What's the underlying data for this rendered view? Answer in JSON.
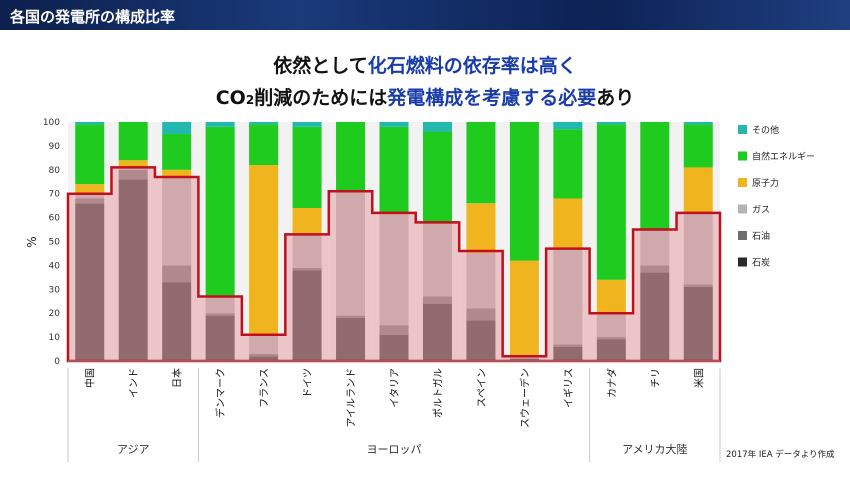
{
  "title": "各国の発電所の構成比率",
  "headline": {
    "l1a": "依然として",
    "l1b": "化石燃料の依存率は高く",
    "l2a": "CO",
    "l2sub": "2",
    "l2b": "削減のためには",
    "l2c": "発電構成を考慮する必要",
    "l2d": "あり"
  },
  "note": "2017年 IEA データより作成",
  "colors": {
    "その他": "#22b8b0",
    "自然エネルギー": "#1ecb1e",
    "原子力": "#f0b41e",
    "ガス": "#b4b4b4",
    "石油": "#6e6e6e",
    "石炭": "#2a2a2a",
    "overlay": "#e8a0a8",
    "outline": "#c0101c"
  },
  "chart_data": {
    "type": "bar",
    "stacked": true,
    "ylabel": "%",
    "ylim": [
      0,
      100
    ],
    "yticks": [
      0,
      10,
      20,
      30,
      40,
      50,
      60,
      70,
      80,
      90,
      100
    ],
    "categories": [
      "中国",
      "インド",
      "日本",
      "デンマーク",
      "フランス",
      "ドイツ",
      "アイルランド",
      "イタリア",
      "ポルトガル",
      "スペイン",
      "スウェーデン",
      "イギリス",
      "カナダ",
      "チリ",
      "米国"
    ],
    "groups": [
      {
        "name": "アジア",
        "count": 3
      },
      {
        "name": "ヨーロッパ",
        "count": 9
      },
      {
        "name": "アメリカ大陸",
        "count": 3
      }
    ],
    "series": [
      {
        "name": "石炭",
        "values": [
          66,
          76,
          33,
          19,
          2,
          38,
          18,
          11,
          24,
          17,
          1,
          6,
          9,
          37,
          31
        ]
      },
      {
        "name": "石油",
        "values": [
          2,
          4,
          7,
          1,
          1,
          1,
          1,
          4,
          3,
          5,
          0,
          1,
          1,
          3,
          1
        ]
      },
      {
        "name": "ガス",
        "values": [
          2,
          1,
          37,
          7,
          8,
          14,
          52,
          47,
          31,
          23,
          1,
          40,
          10,
          15,
          30
        ]
      },
      {
        "name": "原子力",
        "values": [
          4,
          3,
          3,
          0,
          71,
          11,
          0,
          0,
          0,
          21,
          40,
          21,
          14,
          0,
          19
        ]
      },
      {
        "name": "自然エネルギー",
        "values": [
          25,
          16,
          15,
          71,
          17,
          34,
          29,
          36,
          38,
          34,
          58,
          29,
          65,
          45,
          18
        ]
      },
      {
        "name": "その他",
        "values": [
          1,
          0,
          5,
          2,
          1,
          2,
          0,
          2,
          4,
          0,
          0,
          3,
          1,
          0,
          1
        ]
      }
    ],
    "fossil_totals": [
      70,
      81,
      77,
      27,
      11,
      53,
      71,
      62,
      58,
      46,
      2,
      47,
      20,
      55,
      62
    ],
    "legend": [
      "その他",
      "自然エネルギー",
      "原子力",
      "ガス",
      "石油",
      "石炭"
    ],
    "legend_position": "right",
    "grid": false
  }
}
